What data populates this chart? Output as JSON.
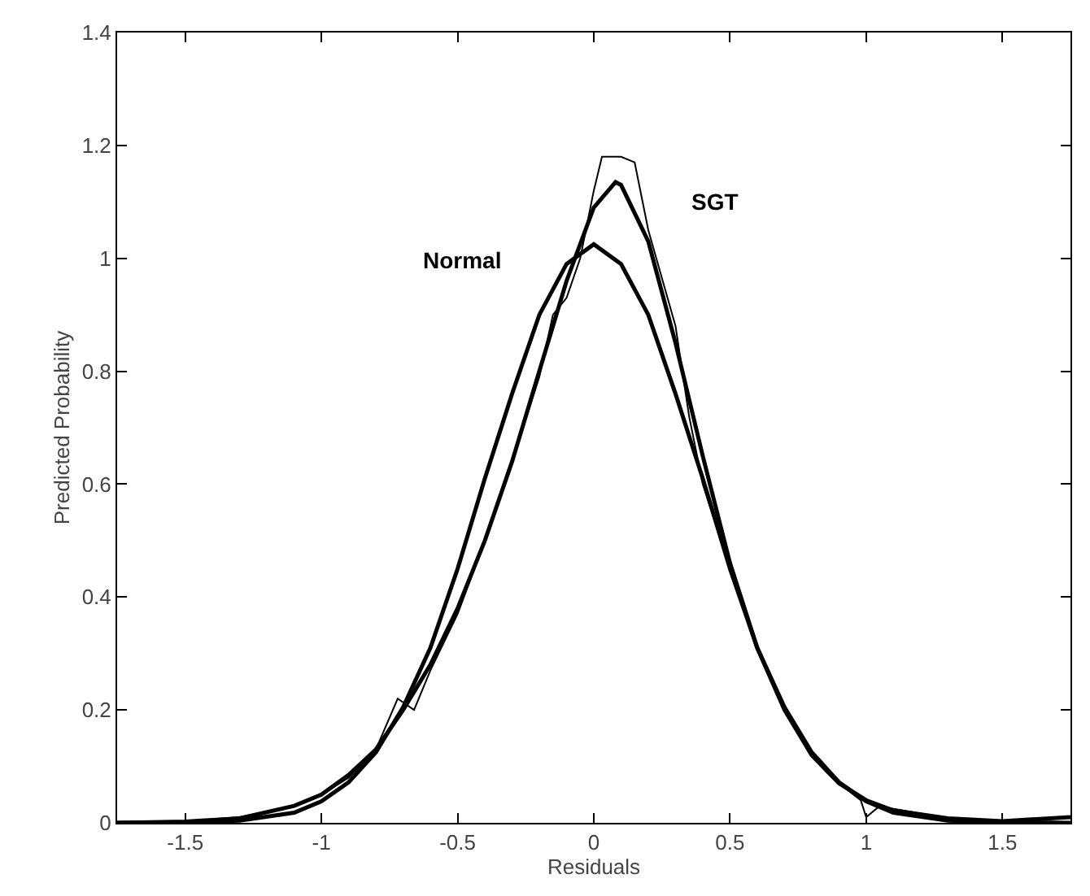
{
  "chart_data": {
    "type": "line",
    "xlabel": "Residuals",
    "ylabel": "Predicted Probability",
    "xlim": [
      -1.75,
      1.75
    ],
    "ylim": [
      0,
      1.4
    ],
    "xticks": [
      -1.5,
      -1,
      -0.5,
      0,
      0.5,
      1,
      1.5
    ],
    "yticks": [
      0,
      0.2,
      0.4,
      0.6,
      0.8,
      1,
      1.2,
      1.4
    ],
    "legend": false,
    "marker": "none",
    "line_style": "solid",
    "series": [
      {
        "color": "#000000",
        "x": [
          -1.75,
          -1.5,
          -1.3,
          -1.1,
          -1.0,
          -0.9,
          -0.8,
          -0.72,
          -0.66,
          -0.6,
          -0.5,
          -0.4,
          -0.3,
          -0.2,
          -0.15,
          -0.1,
          -0.05,
          0.0,
          0.03,
          0.1,
          0.15,
          0.2,
          0.3,
          0.35,
          0.4,
          0.5,
          0.6,
          0.7,
          0.8,
          0.9,
          0.98,
          1.0,
          1.05,
          1.1,
          1.3,
          1.5,
          1.75
        ],
        "values": [
          0,
          0.003,
          0.01,
          0.03,
          0.05,
          0.08,
          0.13,
          0.22,
          0.2,
          0.27,
          0.37,
          0.5,
          0.64,
          0.79,
          0.9,
          0.93,
          1.0,
          1.12,
          1.18,
          1.18,
          1.17,
          1.05,
          0.88,
          0.72,
          0.6,
          0.45,
          0.31,
          0.2,
          0.12,
          0.07,
          0.04,
          0.01,
          0.03,
          0.025,
          0.008,
          0.004,
          0.01
        ]
      },
      {
        "name": "Normal",
        "color": "#000000",
        "x": [
          -1.75,
          -1.5,
          -1.3,
          -1.1,
          -1.0,
          -0.9,
          -0.8,
          -0.7,
          -0.6,
          -0.5,
          -0.4,
          -0.3,
          -0.2,
          -0.1,
          0.0,
          0.1,
          0.2,
          0.3,
          0.4,
          0.5,
          0.6,
          0.7,
          0.8,
          0.9,
          1.0,
          1.1,
          1.3,
          1.5,
          1.75
        ],
        "values": [
          0,
          0.001,
          0.004,
          0.018,
          0.038,
          0.072,
          0.125,
          0.205,
          0.31,
          0.45,
          0.61,
          0.76,
          0.9,
          0.99,
          1.025,
          0.99,
          0.9,
          0.76,
          0.61,
          0.45,
          0.31,
          0.205,
          0.125,
          0.072,
          0.038,
          0.018,
          0.004,
          0.001,
          0
        ]
      },
      {
        "name": "SGT",
        "color": "#000000",
        "x": [
          -1.75,
          -1.5,
          -1.3,
          -1.1,
          -1.0,
          -0.9,
          -0.8,
          -0.7,
          -0.6,
          -0.5,
          -0.4,
          -0.3,
          -0.2,
          -0.1,
          0.0,
          0.08,
          0.1,
          0.2,
          0.3,
          0.4,
          0.5,
          0.6,
          0.7,
          0.8,
          0.9,
          1.0,
          1.1,
          1.3,
          1.5,
          1.75
        ],
        "values": [
          0,
          0.002,
          0.008,
          0.03,
          0.05,
          0.085,
          0.13,
          0.2,
          0.28,
          0.38,
          0.5,
          0.64,
          0.8,
          0.96,
          1.09,
          1.135,
          1.13,
          1.03,
          0.85,
          0.65,
          0.46,
          0.31,
          0.2,
          0.12,
          0.07,
          0.04,
          0.022,
          0.008,
          0.003,
          0.01
        ]
      }
    ]
  }
}
